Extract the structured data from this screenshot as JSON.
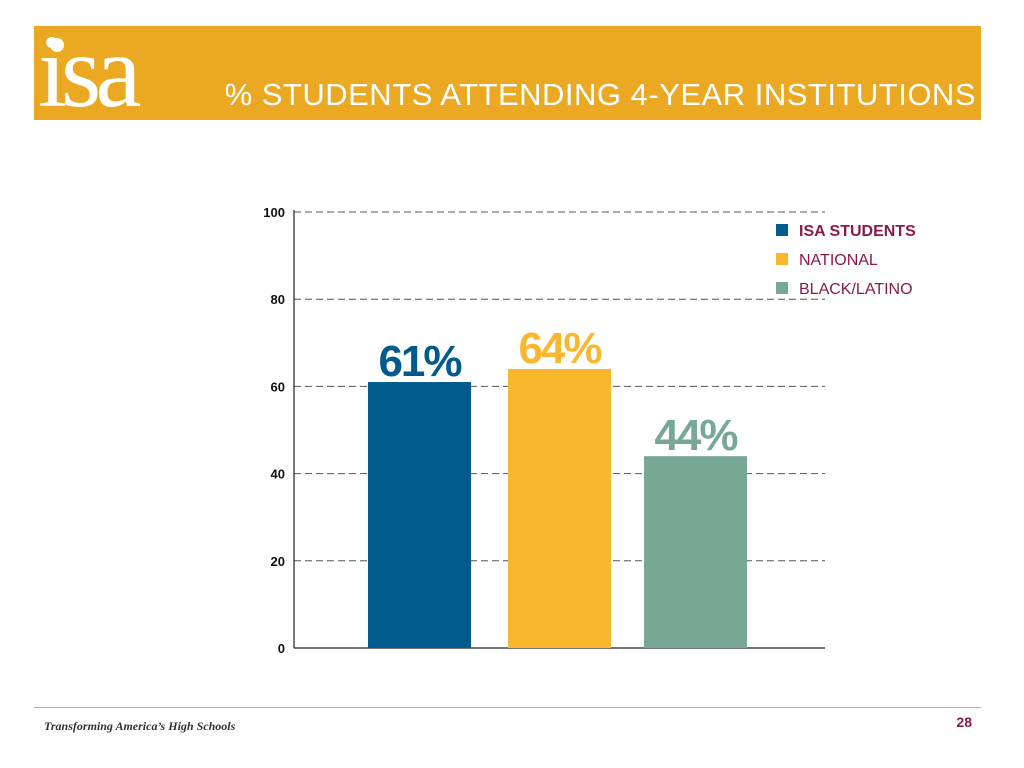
{
  "header": {
    "logo_text": "isa",
    "title": "% STUDENTS ATTENDING 4-YEAR INSTITUTIONS"
  },
  "colors": {
    "header_bg": "#EBA823",
    "isa": "#005A8C",
    "national": "#F9B72F",
    "black_latino": "#77A795",
    "legend_text": "#8B1A4A"
  },
  "chart_data": {
    "type": "bar",
    "title": "",
    "xlabel": "",
    "ylabel": "",
    "ylim": [
      0,
      100
    ],
    "yticks": [
      0,
      20,
      40,
      60,
      80,
      100
    ],
    "grid": true,
    "legend_position": "top-right",
    "series": [
      {
        "name": "ISA STUDENTS",
        "value": 61,
        "label": "61%",
        "color": "#005A8C"
      },
      {
        "name": "NATIONAL",
        "value": 64,
        "label": "64%",
        "color": "#F9B72F"
      },
      {
        "name": "BLACK/LATINO",
        "value": 44,
        "label": "44%",
        "color": "#77A795"
      }
    ]
  },
  "footer": {
    "text": "Transforming America’s High Schools",
    "page_number": "28"
  }
}
